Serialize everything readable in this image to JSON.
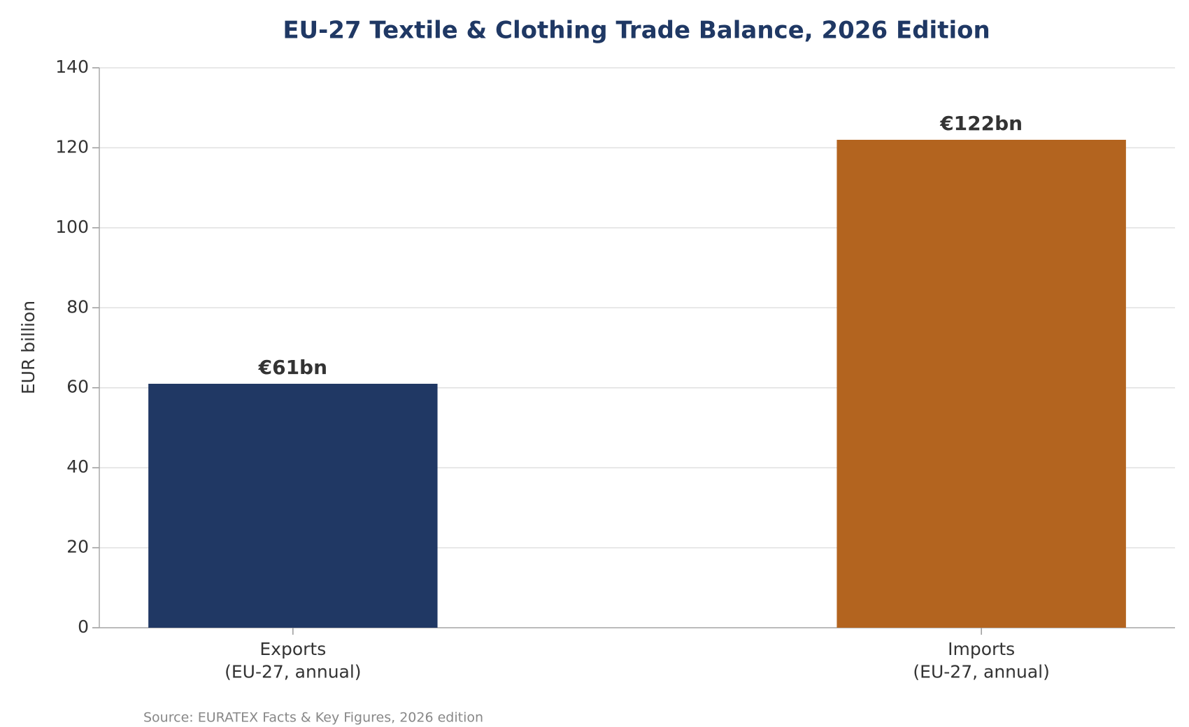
{
  "chart_data": {
    "type": "bar",
    "title": "EU-27 Textile & Clothing Trade Balance, 2026 Edition",
    "y_label": "EUR billion",
    "categories": [
      "Exports\n(EU-27, annual)",
      "Imports\n(EU-27, annual)"
    ],
    "values": [
      61,
      122
    ],
    "value_labels": [
      "€61bn",
      "€122bn"
    ],
    "colors": [
      "#203864",
      "#b3641f"
    ],
    "ylim": [
      0,
      140
    ],
    "yticks": [
      0,
      20,
      40,
      60,
      80,
      100,
      120,
      140
    ],
    "grid": true,
    "source": "Source: EURATEX Facts & Key Figures, 2026 edition"
  }
}
